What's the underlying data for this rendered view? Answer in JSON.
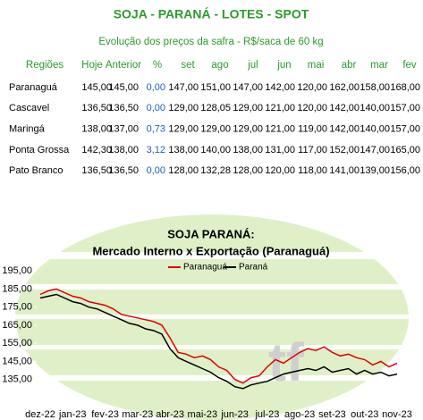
{
  "header": {
    "title": "SOJA - PARANÁ - LOTES - SPOT",
    "subtitle": "Evolução dos preços da safra - R$/saca de 60 kg"
  },
  "table": {
    "columns": [
      "Regiões",
      "Hoje",
      "Anterior",
      "%",
      "set",
      "ago",
      "jul",
      "jun",
      "mai",
      "abr",
      "mar",
      "fev"
    ],
    "rows": [
      [
        "Paranaguá",
        "145,00",
        "145,00",
        "0,00",
        "147,00",
        "151,00",
        "147,00",
        "142,00",
        "120,00",
        "162,00",
        "158,00",
        "168,00"
      ],
      [
        "Cascavel",
        "136,50",
        "136,50",
        "0,00",
        "129,00",
        "128,05",
        "129,00",
        "121,00",
        "120,00",
        "142,00",
        "140,00",
        "157,00"
      ],
      [
        "Maringá",
        "138,00",
        "137,00",
        "0,73",
        "129,00",
        "129,00",
        "129,00",
        "121,00",
        "119,00",
        "142,00",
        "140,00",
        "157,00"
      ],
      [
        "Ponta Grossa",
        "142,30",
        "138,00",
        "3,12",
        "138,00",
        "140,00",
        "138,00",
        "131,00",
        "117,00",
        "152,00",
        "147,00",
        "165,00"
      ],
      [
        "Pato Branco",
        "136,50",
        "136,50",
        "0,00",
        "128,00",
        "132,28",
        "128,00",
        "120,00",
        "118,00",
        "141,00",
        "139,00",
        "156,00"
      ]
    ]
  },
  "chart_data": {
    "type": "line",
    "title": "SOJA PARANÁ:",
    "subtitle": "Mercado Interno x Exportação (Paranaguá)",
    "categories": [
      "dez-22",
      null,
      null,
      null,
      "jan-23",
      null,
      null,
      null,
      "fev-23",
      null,
      null,
      null,
      "mar-23",
      null,
      null,
      null,
      "abr-23",
      null,
      null,
      null,
      "mai-23",
      null,
      null,
      null,
      "jun-23",
      null,
      null,
      null,
      "jul-23",
      null,
      null,
      null,
      "ago-23",
      null,
      null,
      null,
      "set-23",
      null,
      null,
      null,
      "out-23",
      null,
      null,
      null,
      "nov-23"
    ],
    "series": [
      {
        "name": "Paranaguá",
        "color": "#e00000",
        "values": [
          182,
          184,
          185,
          183,
          181,
          180,
          178,
          177,
          176,
          174,
          171,
          170,
          169,
          168,
          167,
          165,
          158,
          150,
          149,
          147,
          148,
          146,
          142,
          140,
          135,
          133,
          136,
          137,
          142,
          146,
          144,
          147,
          150,
          152,
          151,
          153,
          150,
          148,
          149,
          147,
          146,
          143,
          145,
          142,
          144
        ]
      },
      {
        "name": "Paraná",
        "color": "#000000",
        "values": [
          180,
          181,
          182,
          180,
          178,
          177,
          175,
          174,
          172,
          170,
          168,
          166,
          165,
          163,
          162,
          160,
          152,
          147,
          145,
          143,
          141,
          139,
          136,
          134,
          131,
          130,
          132,
          133,
          134,
          136,
          138,
          139,
          140,
          141,
          140,
          142,
          139,
          140,
          141,
          138,
          140,
          138,
          139,
          137,
          138
        ]
      }
    ],
    "ylim": [
      120,
      202
    ],
    "yticks": [
      {
        "value": 135,
        "label": "135,00"
      },
      {
        "value": 145,
        "label": "145,00"
      },
      {
        "value": 155,
        "label": "155,00"
      },
      {
        "value": 165,
        "label": "165,00"
      },
      {
        "value": 175,
        "label": "175,00"
      },
      {
        "value": 185,
        "label": "185,00"
      },
      {
        "value": 195,
        "label": "195,00"
      }
    ],
    "legend": "top"
  }
}
